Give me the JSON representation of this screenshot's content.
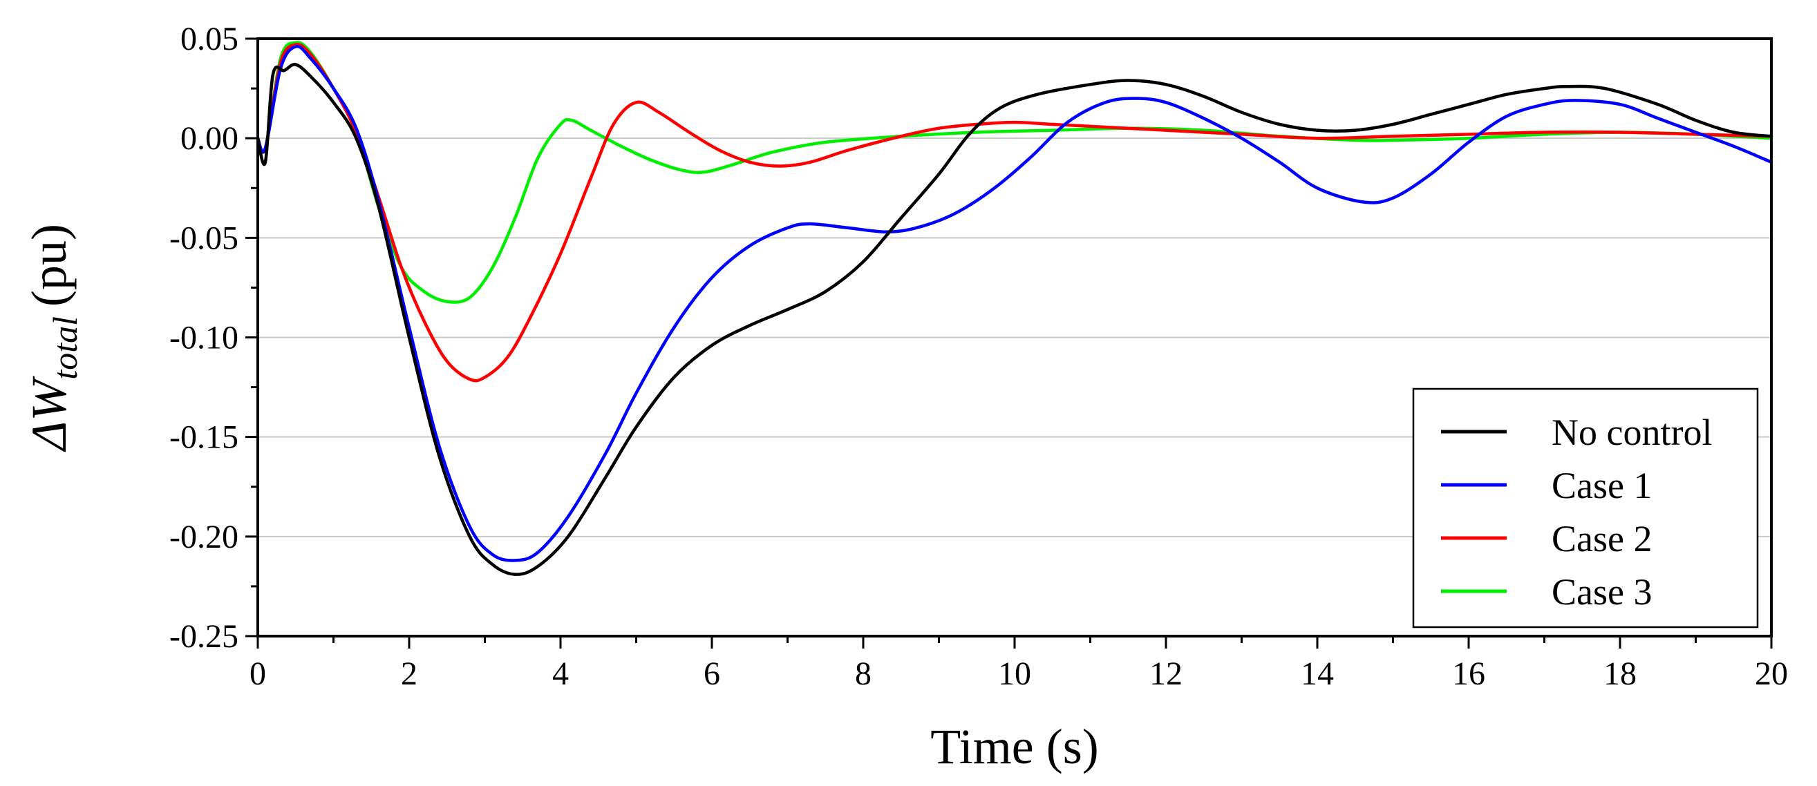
{
  "chart_data": {
    "type": "line",
    "title": "",
    "xlabel": "Time (s)",
    "ylabel": {
      "prefix": "ΔW",
      "subscript": "total",
      "suffix": "(pu)"
    },
    "xlim": [
      0,
      20
    ],
    "ylim": [
      -0.25,
      0.05
    ],
    "xticks": [
      0,
      2,
      4,
      6,
      8,
      10,
      12,
      14,
      16,
      18,
      20
    ],
    "xtick_labels": [
      "0",
      "2",
      "4",
      "6",
      "8",
      "10",
      "12",
      "14",
      "16",
      "18",
      "20"
    ],
    "yticks": [
      0.05,
      0,
      -0.05,
      -0.1,
      -0.15,
      -0.2,
      -0.25
    ],
    "ytick_labels": [
      "0.05",
      "0.00",
      "-0.05",
      "-0.10",
      "-0.15",
      "-0.20",
      "-0.25"
    ],
    "grid": "horizontal",
    "legend_position": "bottom-right",
    "series": [
      {
        "name": "No control",
        "color": "#000000",
        "points": [
          [
            0,
            0
          ],
          [
            0.1,
            -0.012
          ],
          [
            0.2,
            0.032
          ],
          [
            0.35,
            0.034
          ],
          [
            0.5,
            0.037
          ],
          [
            0.7,
            0.031
          ],
          [
            1.0,
            0.018
          ],
          [
            1.3,
            0
          ],
          [
            1.6,
            -0.035
          ],
          [
            2.0,
            -0.1
          ],
          [
            2.4,
            -0.16
          ],
          [
            2.8,
            -0.2
          ],
          [
            3.1,
            -0.214
          ],
          [
            3.4,
            -0.219
          ],
          [
            3.7,
            -0.215
          ],
          [
            4.1,
            -0.2
          ],
          [
            4.6,
            -0.17
          ],
          [
            5.0,
            -0.145
          ],
          [
            5.5,
            -0.12
          ],
          [
            6.0,
            -0.104
          ],
          [
            6.5,
            -0.094
          ],
          [
            7.0,
            -0.086
          ],
          [
            7.5,
            -0.077
          ],
          [
            8.0,
            -0.062
          ],
          [
            8.5,
            -0.04
          ],
          [
            9.0,
            -0.018
          ],
          [
            9.4,
            0.002
          ],
          [
            9.8,
            0.015
          ],
          [
            10.3,
            0.022
          ],
          [
            11.0,
            0.027
          ],
          [
            11.5,
            0.029
          ],
          [
            12.0,
            0.027
          ],
          [
            12.5,
            0.021
          ],
          [
            13.0,
            0.013
          ],
          [
            13.5,
            0.007
          ],
          [
            14.0,
            0.004
          ],
          [
            14.5,
            0.004
          ],
          [
            15.0,
            0.007
          ],
          [
            15.5,
            0.012
          ],
          [
            16.0,
            0.017
          ],
          [
            16.5,
            0.022
          ],
          [
            17.0,
            0.025
          ],
          [
            17.3,
            0.026
          ],
          [
            17.8,
            0.025
          ],
          [
            18.5,
            0.017
          ],
          [
            19.0,
            0.009
          ],
          [
            19.5,
            0.003
          ],
          [
            20.0,
            0.001
          ]
        ]
      },
      {
        "name": "Case 1",
        "color": "#0000ff",
        "points": [
          [
            0,
            0
          ],
          [
            0.1,
            -0.005
          ],
          [
            0.3,
            0.035
          ],
          [
            0.5,
            0.046
          ],
          [
            0.7,
            0.04
          ],
          [
            1.0,
            0.025
          ],
          [
            1.3,
            0.005
          ],
          [
            1.6,
            -0.032
          ],
          [
            2.0,
            -0.095
          ],
          [
            2.4,
            -0.155
          ],
          [
            2.8,
            -0.195
          ],
          [
            3.1,
            -0.209
          ],
          [
            3.4,
            -0.212
          ],
          [
            3.7,
            -0.208
          ],
          [
            4.1,
            -0.19
          ],
          [
            4.6,
            -0.158
          ],
          [
            5.0,
            -0.128
          ],
          [
            5.5,
            -0.095
          ],
          [
            6.0,
            -0.07
          ],
          [
            6.5,
            -0.054
          ],
          [
            7.0,
            -0.045
          ],
          [
            7.3,
            -0.043
          ],
          [
            7.8,
            -0.045
          ],
          [
            8.3,
            -0.047
          ],
          [
            8.7,
            -0.045
          ],
          [
            9.2,
            -0.038
          ],
          [
            9.7,
            -0.026
          ],
          [
            10.2,
            -0.01
          ],
          [
            10.7,
            0.008
          ],
          [
            11.2,
            0.018
          ],
          [
            11.6,
            0.02
          ],
          [
            12.0,
            0.018
          ],
          [
            12.5,
            0.01
          ],
          [
            13.0,
            0
          ],
          [
            13.5,
            -0.012
          ],
          [
            14.0,
            -0.025
          ],
          [
            14.6,
            -0.032
          ],
          [
            15.0,
            -0.03
          ],
          [
            15.5,
            -0.018
          ],
          [
            16.0,
            -0.002
          ],
          [
            16.5,
            0.011
          ],
          [
            17.0,
            0.017
          ],
          [
            17.4,
            0.019
          ],
          [
            18.0,
            0.017
          ],
          [
            18.5,
            0.01
          ],
          [
            19.0,
            0.003
          ],
          [
            19.5,
            -0.004
          ],
          [
            20.0,
            -0.012
          ]
        ]
      },
      {
        "name": "Case 2",
        "color": "#ff0000",
        "points": [
          [
            0,
            0
          ],
          [
            0.1,
            -0.005
          ],
          [
            0.3,
            0.038
          ],
          [
            0.5,
            0.047
          ],
          [
            0.7,
            0.042
          ],
          [
            1.0,
            0.025
          ],
          [
            1.3,
            0.003
          ],
          [
            1.6,
            -0.03
          ],
          [
            1.9,
            -0.065
          ],
          [
            2.2,
            -0.092
          ],
          [
            2.5,
            -0.112
          ],
          [
            2.8,
            -0.121
          ],
          [
            3.0,
            -0.12
          ],
          [
            3.3,
            -0.11
          ],
          [
            3.6,
            -0.09
          ],
          [
            4.0,
            -0.058
          ],
          [
            4.4,
            -0.02
          ],
          [
            4.7,
            0.007
          ],
          [
            5.0,
            0.018
          ],
          [
            5.3,
            0.013
          ],
          [
            5.7,
            0.003
          ],
          [
            6.1,
            -0.006
          ],
          [
            6.5,
            -0.012
          ],
          [
            6.9,
            -0.014
          ],
          [
            7.3,
            -0.012
          ],
          [
            7.8,
            -0.006
          ],
          [
            8.5,
            0.001
          ],
          [
            9.0,
            0.005
          ],
          [
            9.5,
            0.007
          ],
          [
            10.0,
            0.008
          ],
          [
            10.5,
            0.007
          ],
          [
            11.0,
            0.006
          ],
          [
            12.0,
            0.004
          ],
          [
            13.0,
            0.002
          ],
          [
            14.0,
            0
          ],
          [
            15.0,
            0.001
          ],
          [
            16.0,
            0.002
          ],
          [
            17.0,
            0.003
          ],
          [
            18.0,
            0.003
          ],
          [
            19.0,
            0.002
          ],
          [
            20.0,
            0.001
          ]
        ]
      },
      {
        "name": "Case 3",
        "color": "#00ee00",
        "points": [
          [
            0,
            0
          ],
          [
            0.1,
            -0.005
          ],
          [
            0.3,
            0.04
          ],
          [
            0.5,
            0.048
          ],
          [
            0.7,
            0.043
          ],
          [
            1.0,
            0.025
          ],
          [
            1.3,
            0.003
          ],
          [
            1.6,
            -0.035
          ],
          [
            1.9,
            -0.065
          ],
          [
            2.2,
            -0.077
          ],
          [
            2.5,
            -0.082
          ],
          [
            2.8,
            -0.08
          ],
          [
            3.1,
            -0.065
          ],
          [
            3.4,
            -0.04
          ],
          [
            3.7,
            -0.01
          ],
          [
            4.0,
            0.007
          ],
          [
            4.15,
            0.009
          ],
          [
            4.4,
            0.004
          ],
          [
            4.8,
            -0.004
          ],
          [
            5.2,
            -0.011
          ],
          [
            5.6,
            -0.016
          ],
          [
            5.9,
            -0.017
          ],
          [
            6.3,
            -0.013
          ],
          [
            6.8,
            -0.007
          ],
          [
            7.5,
            -0.002
          ],
          [
            8.5,
            0.001
          ],
          [
            9.5,
            0.003
          ],
          [
            10.5,
            0.004
          ],
          [
            11.5,
            0.005
          ],
          [
            12.5,
            0.004
          ],
          [
            13.5,
            0.001
          ],
          [
            14.5,
            -0.001
          ],
          [
            15.0,
            -0.001
          ],
          [
            16.0,
            0
          ],
          [
            17.0,
            0.002
          ],
          [
            18.0,
            0.003
          ],
          [
            19.0,
            0.002
          ],
          [
            20.0,
            0
          ]
        ]
      }
    ]
  }
}
